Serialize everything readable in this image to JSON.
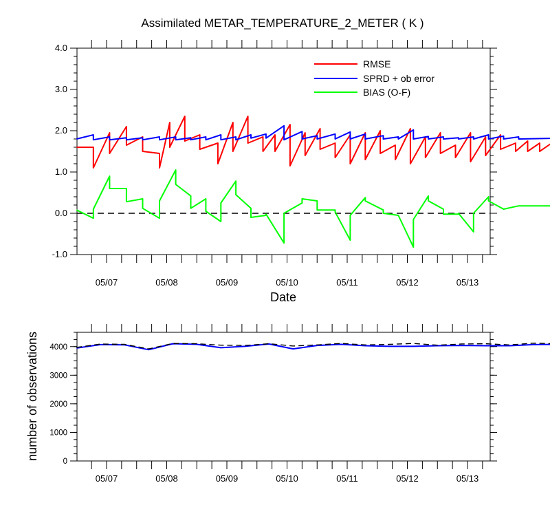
{
  "title": "Assimilated METAR_TEMPERATURE_2_METER ( K )",
  "legend_rmse": "RMSE",
  "legend_sprd": "SPRD + ob error",
  "legend_bias": "BIAS (O-F)",
  "colors": {
    "rmse": "#ff0000",
    "sprd": "#0000ff",
    "bias": "#00ff00"
  },
  "chart_data": [
    {
      "type": "line",
      "title": "Assimilated METAR_TEMPERATURE_2_METER ( K )",
      "xlabel": "Date",
      "ylabel": "",
      "x_tick_labels": [
        "05/07",
        "05/08",
        "05/09",
        "05/10",
        "05/11",
        "05/12",
        "05/13"
      ],
      "xlim": [
        "05/06 12Z",
        "05/13 21Z"
      ],
      "ylim": [
        -1.0,
        4.0
      ],
      "y_tick_labels": [
        "-1.0",
        "0.0",
        "1.0",
        "2.0",
        "3.0",
        "4.0"
      ],
      "reference_line": {
        "y": 0.0,
        "style": "dashed"
      },
      "legend_position": "top-right",
      "series": [
        {
          "name": "RMSE",
          "color": "#ff0000",
          "x": [
            0,
            0.28,
            0.28,
            0.55,
            0.55,
            0.83,
            0.83,
            1.1,
            1.1,
            1.38,
            1.38,
            1.55,
            1.55,
            1.8,
            1.8,
            2.05,
            2.05,
            2.35,
            2.35,
            2.6,
            2.6,
            2.85,
            2.85,
            3.1,
            3.1,
            3.3,
            3.3,
            3.55,
            3.55,
            3.8,
            3.8,
            4.05,
            4.05,
            4.3,
            4.3,
            4.55,
            4.55,
            4.8,
            4.8,
            5.05,
            5.05,
            5.3,
            5.3,
            5.55,
            5.55,
            5.8,
            5.8,
            6.05,
            6.05,
            6.3,
            6.3,
            6.55,
            6.55,
            6.8,
            6.8,
            7.05,
            7.05,
            7.3,
            7.3,
            7.5,
            7.5,
            7.7,
            7.7,
            7.9,
            7.9,
            8.15,
            8.15,
            8.4
          ],
          "y": [
            1.6,
            1.6,
            1.1,
            1.95,
            1.45,
            2.1,
            1.65,
            1.85,
            1.5,
            1.45,
            1.1,
            2.2,
            1.6,
            2.35,
            1.75,
            1.9,
            1.55,
            1.7,
            1.2,
            2.2,
            1.5,
            2.35,
            1.7,
            1.85,
            1.5,
            1.9,
            1.5,
            2.15,
            1.15,
            1.95,
            1.4,
            2.05,
            1.55,
            1.7,
            1.35,
            1.9,
            1.2,
            1.95,
            1.3,
            2.0,
            1.45,
            1.65,
            1.3,
            2.05,
            1.2,
            1.85,
            1.35,
            1.95,
            1.45,
            1.65,
            1.35,
            1.95,
            1.25,
            1.85,
            1.4,
            1.9,
            1.55,
            1.7,
            1.5,
            1.75,
            1.5,
            1.7,
            1.5,
            1.7,
            1.55,
            1.75,
            1.55,
            1.75
          ]
        },
        {
          "name": "SPRD + ob error",
          "color": "#0000ff",
          "x": [
            0,
            0.28,
            0.28,
            0.55,
            0.55,
            0.83,
            0.83,
            1.1,
            1.1,
            1.38,
            1.38,
            1.65,
            1.65,
            1.9,
            1.9,
            2.15,
            2.15,
            2.4,
            2.4,
            2.65,
            2.65,
            2.9,
            2.9,
            3.15,
            3.15,
            3.45,
            3.45,
            3.75,
            3.75,
            4.0,
            4.0,
            4.3,
            4.3,
            4.55,
            4.55,
            4.8,
            4.8,
            5.1,
            5.1,
            5.35,
            5.35,
            5.6,
            5.6,
            5.85,
            5.85,
            6.1,
            6.1,
            6.35,
            6.35,
            6.6,
            6.6,
            6.85,
            6.85,
            7.1,
            7.1,
            7.35,
            7.35,
            8.4
          ],
          "y": [
            1.8,
            1.9,
            1.78,
            1.85,
            1.78,
            1.83,
            1.78,
            1.83,
            1.78,
            1.85,
            1.78,
            1.85,
            1.78,
            1.83,
            1.78,
            1.85,
            1.78,
            1.9,
            1.78,
            1.85,
            1.78,
            1.9,
            1.82,
            1.92,
            1.82,
            2.12,
            1.78,
            1.98,
            1.8,
            1.88,
            1.8,
            1.92,
            1.8,
            1.97,
            1.8,
            1.92,
            1.8,
            1.88,
            1.8,
            1.85,
            1.8,
            2.02,
            1.8,
            1.86,
            1.8,
            1.85,
            1.8,
            1.83,
            1.8,
            1.85,
            1.8,
            1.9,
            1.8,
            1.87,
            1.8,
            1.85,
            1.8,
            1.83
          ]
        },
        {
          "name": "BIAS (O-F)",
          "color": "#00ff00",
          "x": [
            0,
            0.28,
            0.28,
            0.55,
            0.55,
            0.83,
            0.83,
            1.1,
            1.1,
            1.38,
            1.38,
            1.65,
            1.65,
            1.9,
            1.9,
            2.15,
            2.15,
            2.4,
            2.4,
            2.65,
            2.65,
            2.9,
            2.9,
            3.15,
            3.15,
            3.45,
            3.45,
            3.75,
            3.75,
            4.0,
            4.0,
            4.3,
            4.3,
            4.55,
            4.55,
            4.8,
            4.8,
            5.1,
            5.1,
            5.35,
            5.35,
            5.6,
            5.6,
            5.85,
            5.85,
            6.1,
            6.1,
            6.35,
            6.35,
            6.6,
            6.6,
            6.85,
            6.85,
            7.1,
            7.1,
            7.35,
            7.35,
            7.6,
            7.6,
            7.9,
            7.9,
            8.15,
            8.15,
            8.4
          ],
          "y": [
            0.08,
            -0.12,
            0.1,
            0.9,
            0.6,
            0.6,
            0.28,
            0.35,
            0.12,
            -0.12,
            0.3,
            1.05,
            0.7,
            0.42,
            0.12,
            0.35,
            0.05,
            -0.2,
            0.25,
            0.78,
            0.45,
            0.12,
            -0.1,
            -0.05,
            -0.02,
            -0.72,
            0.0,
            0.25,
            0.35,
            0.3,
            0.08,
            0.08,
            0.03,
            -0.65,
            -0.05,
            0.38,
            0.3,
            0.08,
            0.0,
            -0.05,
            -0.05,
            -0.82,
            -0.15,
            0.42,
            0.3,
            0.1,
            -0.02,
            -0.02,
            0.0,
            -0.45,
            0.0,
            0.4,
            0.3,
            0.1,
            0.1,
            0.18,
            0.18,
            0.18,
            0.18,
            0.18,
            0.18,
            0.18,
            0.18,
            0.18
          ]
        }
      ]
    },
    {
      "type": "line",
      "title": "",
      "xlabel": "",
      "ylabel": "number of observations",
      "x_tick_labels": [
        "05/07",
        "05/08",
        "05/09",
        "05/10",
        "05/11",
        "05/12",
        "05/13"
      ],
      "ylim": [
        0,
        4500
      ],
      "y_tick_labels": [
        "0",
        "1000",
        "2000",
        "3000",
        "4000"
      ],
      "series": [
        {
          "color": "#0000ff",
          "style": "solid",
          "x": [
            0,
            0.4,
            0.8,
            1.2,
            1.6,
            2.0,
            2.4,
            2.8,
            3.2,
            3.6,
            4.0,
            4.4,
            4.8,
            5.2,
            5.6,
            6.0,
            6.4,
            6.8,
            7.2,
            7.6,
            8.0,
            8.4
          ],
          "y": [
            3950,
            4070,
            4060,
            3890,
            4100,
            4080,
            3960,
            4010,
            4090,
            3920,
            4040,
            4080,
            4030,
            4010,
            4010,
            4030,
            4040,
            4030,
            4030,
            4070,
            4080,
            4020
          ]
        },
        {
          "color": "#000000",
          "style": "dashed",
          "x": [
            0,
            0.4,
            0.8,
            1.2,
            1.6,
            2.0,
            2.4,
            2.8,
            3.2,
            3.6,
            4.0,
            4.4,
            4.8,
            5.2,
            5.6,
            6.0,
            6.4,
            6.8,
            7.2,
            7.6,
            8.0,
            8.4
          ],
          "y": [
            3970,
            4090,
            4080,
            3920,
            4110,
            4100,
            4050,
            4040,
            4100,
            4020,
            4060,
            4110,
            4060,
            4080,
            4110,
            4050,
            4090,
            4100,
            4060,
            4120,
            4100,
            4040
          ]
        }
      ]
    }
  ]
}
